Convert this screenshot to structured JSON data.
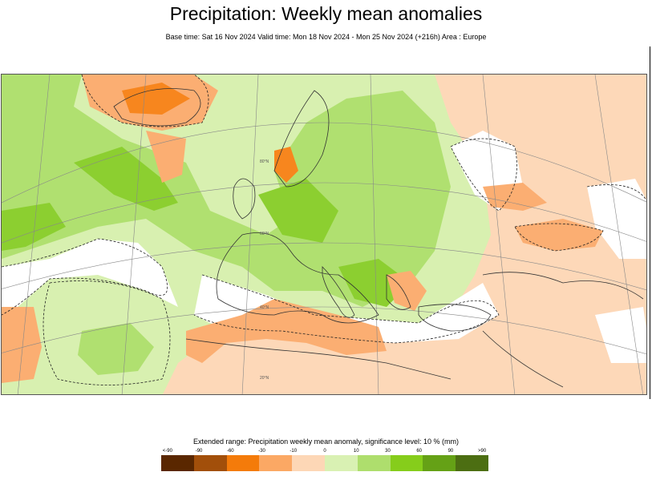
{
  "title": "Precipitation: Weekly mean anomalies",
  "subtitle": "Base time: Sat 16 Nov 2024 Valid time: Mon 18 Nov 2024 - Mon 25 Nov 2024 (+216h) Area : Europe",
  "map": {
    "region": "Europe",
    "colors": {
      "positive_light": "#d8f0b0",
      "positive_mid": "#b0e070",
      "positive_strong": "#8ccf30",
      "negative_light": "#fdd8b8",
      "negative_mid": "#fbae72",
      "negative_strong": "#f7861e",
      "land_border": "#333333",
      "graticule": "#888888"
    },
    "graticule_labels": [
      "20°N",
      "40°N",
      "60°N",
      "80°N"
    ]
  },
  "legend": {
    "title": "Extended range: Precipitation weekly mean anomaly, significance level: 10 % (mm)",
    "ticks": [
      "<-90",
      "-90",
      "-60",
      "-30",
      "-10",
      "0",
      "10",
      "30",
      "60",
      "90",
      ">90"
    ],
    "colors": [
      "#5a2700",
      "#a24f0a",
      "#f47b0a",
      "#fba864",
      "#fdd7b6",
      "#ffffff",
      "#d9f1b3",
      "#aede6d",
      "#86cd1b",
      "#65a116",
      "#4c6e12"
    ]
  }
}
